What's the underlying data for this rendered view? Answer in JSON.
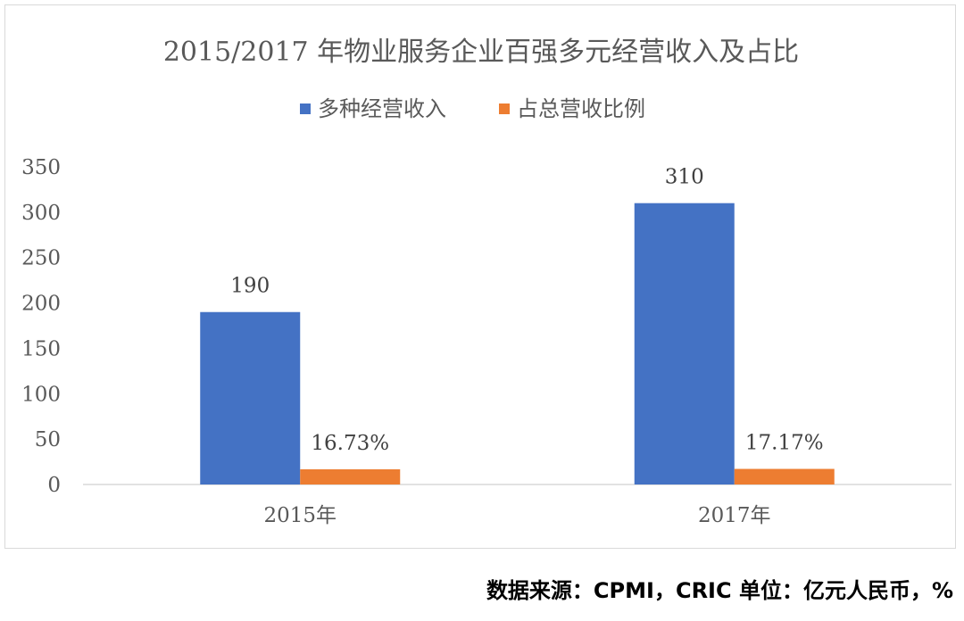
{
  "chart_data": {
    "type": "bar",
    "title": "2015/2017 年物业服务企业百强多元经营收入及占比",
    "categories": [
      "2015年",
      "2017年"
    ],
    "series": [
      {
        "name": "多种经营收入",
        "values": [
          190,
          310
        ],
        "labels": [
          "190",
          "310"
        ],
        "color": "#4472C4"
      },
      {
        "name": "占总营收比例",
        "values": [
          16.73,
          17.17
        ],
        "labels": [
          "16.73%",
          "17.17%"
        ],
        "color": "#ED7D31",
        "unit": "%"
      }
    ],
    "ylim": [
      0,
      350
    ],
    "yticks": [
      0,
      50,
      100,
      150,
      200,
      250,
      300,
      350
    ],
    "legend_position": "top",
    "grid": false
  },
  "source_note": "数据来源：CPMI，CRIC 单位：亿元人民币，%"
}
